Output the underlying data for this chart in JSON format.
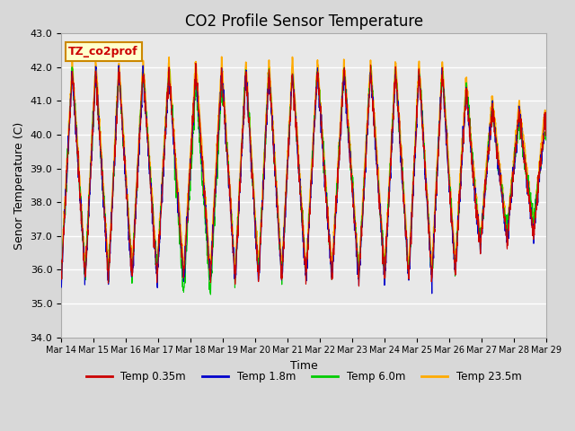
{
  "title": "CO2 Profile Sensor Temperature",
  "ylabel": "Senor Temperature (C)",
  "xlabel": "Time",
  "ylim": [
    34.0,
    43.0
  ],
  "yticks": [
    34.0,
    35.0,
    36.0,
    37.0,
    38.0,
    39.0,
    40.0,
    41.0,
    42.0,
    43.0
  ],
  "n_days": 15,
  "x_tick_labels": [
    "Mar 14",
    "Mar 15",
    "Mar 16",
    "Mar 17",
    "Mar 18",
    "Mar 19",
    "Mar 20",
    "Mar 21",
    "Mar 22",
    "Mar 23",
    "Mar 24",
    "Mar 25",
    "Mar 26",
    "Mar 27",
    "Mar 28",
    "Mar 29"
  ],
  "legend_label": "TZ_co2prof",
  "series_labels": [
    "Temp 0.35m",
    "Temp 1.8m",
    "Temp 6.0m",
    "Temp 23.5m"
  ],
  "series_colors": [
    "#cc0000",
    "#0000cc",
    "#00cc00",
    "#ffaa00"
  ],
  "series_linewidths": [
    0.8,
    0.8,
    0.8,
    1.2
  ],
  "plot_bg_color": "#e8e8e8",
  "grid_color": "#ffffff",
  "title_fontsize": 12,
  "axis_fontsize": 9,
  "tick_fontsize": 8,
  "fig_width": 6.4,
  "fig_height": 4.8,
  "dpi": 100
}
